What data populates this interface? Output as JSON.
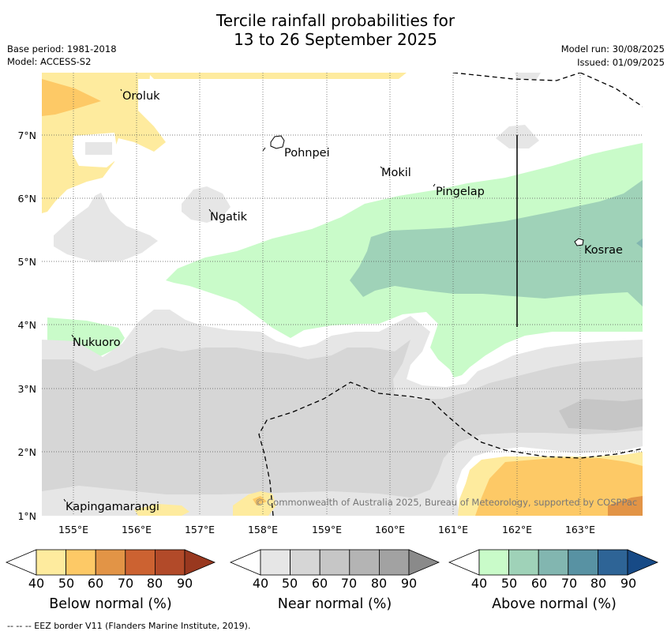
{
  "header": {
    "title_line1": "Tercile rainfall probabilities for",
    "title_line2": "13 to 26 September 2025",
    "base_period": "Base period: 1981-2018",
    "model": "Model: ACCESS-S2",
    "model_run": "Model run: 30/08/2025",
    "issued": "Issued: 01/09/2025"
  },
  "map": {
    "lon_ticks": [
      "155°E",
      "156°E",
      "157°E",
      "158°E",
      "159°E",
      "160°E",
      "161°E",
      "162°E",
      "163°E"
    ],
    "lat_ticks": [
      "7°N",
      "6°N",
      "5°N",
      "4°N",
      "3°N",
      "2°N",
      "1°N"
    ],
    "places": [
      "Oroluk",
      "Pohnpei",
      "Mokil",
      "Pingelap",
      "Ngatik",
      "Kosrae",
      "Nukuoro",
      "Kapingamarangi"
    ],
    "copyright": "© Commonwealth of Australia 2025, Bureau of Meteorology, supported by COSPPac"
  },
  "colorbars": [
    {
      "label": "Below normal (%)",
      "ticks": [
        "40",
        "50",
        "60",
        "70",
        "80",
        "90"
      ],
      "colors": [
        "#ffffff",
        "#feeb9e",
        "#fdc966",
        "#e29446",
        "#cc6231",
        "#b24a29",
        "#99381f"
      ]
    },
    {
      "label": "Near normal (%)",
      "ticks": [
        "40",
        "50",
        "60",
        "70",
        "80",
        "90"
      ],
      "colors": [
        "#ffffff",
        "#e6e6e6",
        "#d6d6d6",
        "#c6c6c6",
        "#b4b4b4",
        "#a2a2a2",
        "#8a8a8a"
      ]
    },
    {
      "label": "Above normal (%)",
      "ticks": [
        "40",
        "50",
        "60",
        "70",
        "80",
        "90"
      ],
      "colors": [
        "#ffffff",
        "#c9fbc9",
        "#9fd2b8",
        "#82b6b0",
        "#5892a3",
        "#2e6496",
        "#174a86"
      ]
    }
  ],
  "footnote": "--  --  -- EEZ border V11 (Flanders Marine Institute, 2019)."
}
